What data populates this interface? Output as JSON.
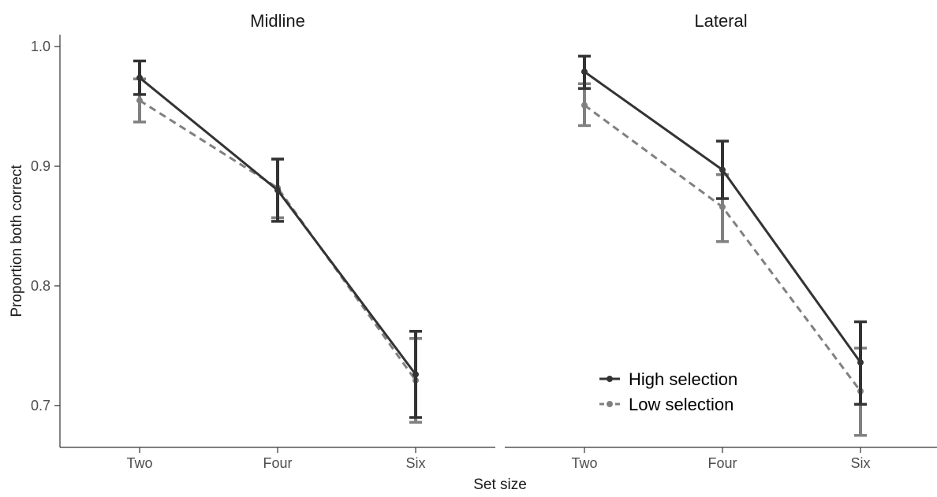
{
  "chart_data": {
    "type": "line",
    "xlabel": "Set size",
    "ylabel": "Proportion both correct",
    "categories": [
      "Two",
      "Four",
      "Six"
    ],
    "ylim": [
      0.665,
      1.01
    ],
    "yticks": [
      0.7,
      0.8,
      0.9,
      1.0
    ],
    "ytick_labels": [
      "0.7",
      "0.8",
      "0.9",
      "1.0"
    ],
    "grid": false,
    "legend": {
      "placement": "bottom-right of Lateral panel",
      "entries": [
        "High selection",
        "Low selection"
      ]
    },
    "series_styles": [
      {
        "name": "High selection",
        "color": "#333333",
        "dash": "solid"
      },
      {
        "name": "Low selection",
        "color": "#808080",
        "dash": "dashed"
      }
    ],
    "panels": [
      {
        "title": "Midline",
        "series": [
          {
            "name": "High selection",
            "values": [
              0.974,
              0.88,
              0.726
            ],
            "lower": [
              0.96,
              0.854,
              0.69
            ],
            "upper": [
              0.988,
              0.906,
              0.762
            ]
          },
          {
            "name": "Low selection",
            "values": [
              0.955,
              0.882,
              0.721
            ],
            "lower": [
              0.937,
              0.857,
              0.686
            ],
            "upper": [
              0.973,
              0.906,
              0.756
            ]
          }
        ]
      },
      {
        "title": "Lateral",
        "series": [
          {
            "name": "High selection",
            "values": [
              0.979,
              0.897,
              0.736
            ],
            "lower": [
              0.965,
              0.873,
              0.701
            ],
            "upper": [
              0.992,
              0.921,
              0.77
            ]
          },
          {
            "name": "Low selection",
            "values": [
              0.951,
              0.866,
              0.712
            ],
            "lower": [
              0.934,
              0.837,
              0.675
            ],
            "upper": [
              0.969,
              0.893,
              0.748
            ]
          }
        ]
      }
    ]
  }
}
